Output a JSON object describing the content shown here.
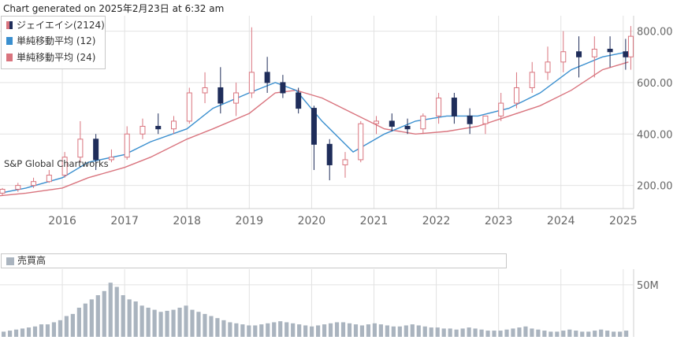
{
  "header": {
    "generated_text": "Chart generated on 2025年2月23日 at 6:32 am"
  },
  "credit": "S&P Global Chartworks",
  "legend": {
    "items": [
      {
        "label": "ジェイエイシ(2124)",
        "color": "#1f2d5a"
      },
      {
        "label": "単純移動平均 (12)",
        "color": "#3a8fcf"
      },
      {
        "label": "単純移動平均 (24)",
        "color": "#d9747e"
      }
    ]
  },
  "volume_legend": {
    "label": "売買高",
    "color": "#aab4bf"
  },
  "colors": {
    "up": "#d9747e",
    "down": "#1f2d5a",
    "sma12": "#3a8fcf",
    "sma24": "#d9747e",
    "volume": "#aab4bf",
    "grid": "#e2e2e2",
    "axis_text": "#666666"
  },
  "chart_data": [
    {
      "type": "candlestick",
      "title": "",
      "xlabel": "",
      "ylabel": "",
      "x_tick_labels": [
        "2016",
        "2017",
        "2018",
        "2019",
        "2020",
        "2021",
        "2022",
        "2023",
        "2024",
        "2025"
      ],
      "y_tick_labels": [
        "200.00",
        "400.00",
        "600.00",
        "800.00"
      ],
      "y_ticks": [
        200,
        400,
        600,
        800
      ],
      "ylim": [
        110,
        860
      ],
      "xlim": [
        "2015-01-01",
        "2025-03-01"
      ],
      "grid": true,
      "legend_position": "top-left",
      "series": [
        {
          "name": "ジェイエイシ(2124)",
          "kind": "ohlc",
          "x": [
            "2015-01",
            "2015-04",
            "2015-07",
            "2015-10",
            "2016-01",
            "2016-04",
            "2016-07",
            "2016-10",
            "2017-01",
            "2017-04",
            "2017-07",
            "2017-10",
            "2018-01",
            "2018-04",
            "2018-07",
            "2018-10",
            "2019-01",
            "2019-04",
            "2019-07",
            "2019-10",
            "2020-01",
            "2020-04",
            "2020-07",
            "2020-10",
            "2021-01",
            "2021-04",
            "2021-07",
            "2021-10",
            "2022-01",
            "2022-04",
            "2022-07",
            "2022-10",
            "2023-01",
            "2023-04",
            "2023-07",
            "2023-10",
            "2024-01",
            "2024-04",
            "2024-07",
            "2024-10",
            "2025-01",
            "2025-02"
          ],
          "open": [
            170,
            185,
            200,
            215,
            240,
            310,
            380,
            300,
            310,
            400,
            430,
            420,
            450,
            560,
            580,
            520,
            560,
            640,
            600,
            560,
            500,
            360,
            280,
            300,
            440,
            450,
            430,
            420,
            470,
            540,
            470,
            440,
            470,
            520,
            580,
            640,
            680,
            720,
            700,
            730,
            720,
            700
          ],
          "high": [
            190,
            210,
            230,
            260,
            330,
            450,
            400,
            340,
            430,
            460,
            480,
            470,
            580,
            640,
            660,
            600,
            815,
            700,
            630,
            580,
            510,
            380,
            330,
            450,
            470,
            480,
            460,
            480,
            560,
            560,
            500,
            470,
            560,
            640,
            680,
            740,
            800,
            780,
            780,
            780,
            770,
            820
          ],
          "low": [
            160,
            175,
            190,
            210,
            230,
            290,
            260,
            290,
            300,
            380,
            400,
            400,
            440,
            520,
            480,
            470,
            540,
            560,
            540,
            480,
            260,
            220,
            230,
            290,
            400,
            410,
            400,
            400,
            440,
            440,
            400,
            400,
            450,
            500,
            560,
            610,
            640,
            620,
            620,
            660,
            650,
            650
          ],
          "close": [
            185,
            200,
            215,
            240,
            310,
            380,
            300,
            310,
            400,
            430,
            420,
            450,
            560,
            580,
            520,
            560,
            640,
            600,
            560,
            500,
            360,
            280,
            300,
            440,
            450,
            430,
            420,
            470,
            540,
            470,
            440,
            470,
            520,
            580,
            640,
            680,
            720,
            700,
            730,
            720,
            700,
            780
          ]
        },
        {
          "name": "単純移動平均 (12)",
          "kind": "line",
          "x": [
            "2015-01",
            "2015-06",
            "2016-01",
            "2016-06",
            "2017-01",
            "2017-06",
            "2018-01",
            "2018-06",
            "2019-01",
            "2019-06",
            "2019-10",
            "2020-03",
            "2020-09",
            "2021-03",
            "2021-09",
            "2022-03",
            "2022-09",
            "2023-03",
            "2023-09",
            "2024-03",
            "2024-09",
            "2025-02"
          ],
          "y": [
            170,
            190,
            230,
            290,
            320,
            370,
            420,
            500,
            560,
            600,
            570,
            450,
            330,
            400,
            450,
            470,
            470,
            500,
            560,
            650,
            700,
            720
          ]
        },
        {
          "name": "単純移動平均 (24)",
          "kind": "line",
          "x": [
            "2015-01",
            "2015-06",
            "2016-01",
            "2016-06",
            "2017-01",
            "2017-06",
            "2018-01",
            "2018-06",
            "2019-01",
            "2019-06",
            "2019-10",
            "2020-03",
            "2020-09",
            "2021-03",
            "2021-09",
            "2022-03",
            "2022-09",
            "2023-03",
            "2023-09",
            "2024-03",
            "2024-09",
            "2025-02"
          ],
          "y": [
            160,
            170,
            190,
            230,
            270,
            310,
            380,
            420,
            480,
            560,
            570,
            540,
            480,
            420,
            400,
            410,
            430,
            470,
            510,
            570,
            650,
            680
          ]
        }
      ]
    },
    {
      "type": "bar",
      "title": "売買高",
      "xlabel": "",
      "ylabel": "",
      "y_tick_labels": [
        "50M"
      ],
      "y_ticks": [
        50
      ],
      "ylim": [
        0,
        65
      ],
      "grid": true,
      "series": [
        {
          "name": "売買高",
          "values": [
            5,
            6,
            7,
            8,
            9,
            10,
            12,
            12,
            14,
            16,
            20,
            22,
            28,
            32,
            36,
            40,
            44,
            52,
            48,
            40,
            36,
            34,
            30,
            28,
            26,
            24,
            25,
            26,
            28,
            30,
            26,
            24,
            22,
            20,
            18,
            16,
            14,
            13,
            12,
            11,
            11,
            12,
            13,
            14,
            15,
            14,
            13,
            12,
            11,
            10,
            11,
            12,
            13,
            14,
            14,
            13,
            12,
            11,
            12,
            13,
            12,
            11,
            10,
            10,
            11,
            12,
            11,
            10,
            9,
            9,
            8,
            8,
            7,
            8,
            9,
            8,
            7,
            6,
            6,
            6,
            7,
            8,
            9,
            10,
            8,
            7,
            6,
            5,
            5,
            6,
            7,
            6,
            5,
            5,
            6,
            7,
            6,
            5,
            5,
            6
          ]
        }
      ]
    }
  ]
}
